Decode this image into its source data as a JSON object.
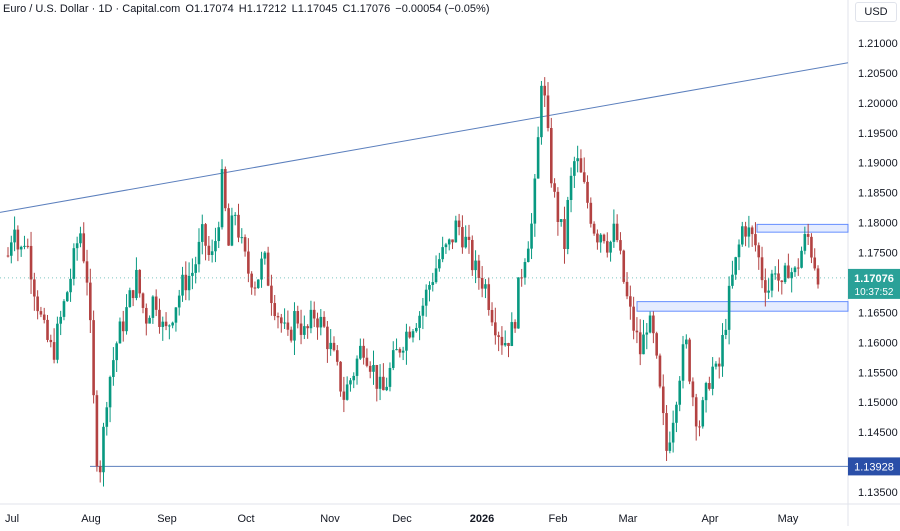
{
  "header": {
    "symbol": "Euro / U.S. Dollar",
    "timeframe": "1D",
    "source": "Capital.com",
    "open_label": "O",
    "open": "1.17074",
    "high_label": "H",
    "high": "1.17212",
    "low_label": "L",
    "low": "1.17045",
    "close_label": "C",
    "close": "1.17076",
    "change": "−0.00054 (−0.05%)",
    "sep": "·",
    "currency": "USD"
  },
  "chart_data": {
    "type": "candlestick",
    "title": "Euro / U.S. Dollar",
    "x_ticks": [
      "Jul",
      "Aug",
      "Sep",
      "Oct",
      "Nov",
      "Dec",
      "2026",
      "Feb",
      "Mar",
      "Apr",
      "May"
    ],
    "y_ticks": [
      "1.21000",
      "1.20500",
      "1.20000",
      "1.19500",
      "1.19000",
      "1.18500",
      "1.18000",
      "1.17500",
      "1.17000",
      "1.16500",
      "1.16000",
      "1.15500",
      "1.15000",
      "1.14500",
      "1.14000",
      "1.13500"
    ],
    "ylim": [
      1.133,
      1.2135
    ],
    "price_label": "1.17076",
    "countdown": "10:37:52",
    "low_label": "1.13928",
    "trendline": {
      "from": 1.1817,
      "to": 1.2067
    },
    "horizontal_line": 1.13928,
    "zones": [
      {
        "low": 1.1652,
        "high": 1.1668
      },
      {
        "low": 1.1784,
        "high": 1.1797
      }
    ],
    "colors": {
      "up": "#26a69a",
      "down": "#ef5350",
      "candle_up_body": "#089981",
      "candle_down_body": "#b34242",
      "line": "#5b7fbd",
      "zone": "#2962ff",
      "last": "#2aa198"
    },
    "path": [
      [
        0,
        1.1745
      ],
      [
        4,
        1.181
      ],
      [
        7,
        1.174
      ],
      [
        11,
        1.178
      ],
      [
        16,
        1.17
      ],
      [
        22,
        1.162
      ],
      [
        28,
        1.158
      ],
      [
        34,
        1.165
      ],
      [
        40,
        1.172
      ],
      [
        45,
        1.179
      ],
      [
        50,
        1.17
      ],
      [
        55,
        1.142
      ],
      [
        58,
        1.1393
      ],
      [
        62,
        1.152
      ],
      [
        68,
        1.16
      ],
      [
        74,
        1.165
      ],
      [
        80,
        1.171
      ],
      [
        86,
        1.164
      ],
      [
        92,
        1.168
      ],
      [
        98,
        1.161
      ],
      [
        104,
        1.166
      ],
      [
        110,
        1.17
      ],
      [
        116,
        1.172
      ],
      [
        122,
        1.178
      ],
      [
        127,
        1.173
      ],
      [
        131,
        1.179
      ],
      [
        134,
        1.187
      ],
      [
        138,
        1.176
      ],
      [
        142,
        1.182
      ],
      [
        146,
        1.176
      ],
      [
        150,
        1.172
      ],
      [
        155,
        1.17
      ],
      [
        160,
        1.174
      ],
      [
        165,
        1.168
      ],
      [
        170,
        1.164
      ],
      [
        175,
        1.16
      ],
      [
        180,
        1.165
      ],
      [
        186,
        1.161
      ],
      [
        192,
        1.165
      ],
      [
        198,
        1.162
      ],
      [
        204,
        1.157
      ],
      [
        210,
        1.151
      ],
      [
        216,
        1.155
      ],
      [
        222,
        1.16
      ],
      [
        228,
        1.156
      ],
      [
        234,
        1.151
      ],
      [
        240,
        1.156
      ],
      [
        246,
        1.16
      ],
      [
        252,
        1.163
      ],
      [
        258,
        1.165
      ],
      [
        264,
        1.17
      ],
      [
        270,
        1.174
      ],
      [
        276,
        1.176
      ],
      [
        281,
        1.18
      ],
      [
        286,
        1.177
      ],
      [
        292,
        1.172
      ],
      [
        298,
        1.17
      ],
      [
        304,
        1.164
      ],
      [
        310,
        1.16
      ],
      [
        316,
        1.162
      ],
      [
        320,
        1.17
      ],
      [
        324,
        1.176
      ],
      [
        328,
        1.18
      ],
      [
        331,
        1.19
      ],
      [
        334,
        1.206
      ],
      [
        337,
        1.196
      ],
      [
        341,
        1.185
      ],
      [
        345,
        1.18
      ],
      [
        348,
        1.176
      ],
      [
        351,
        1.185
      ],
      [
        355,
        1.191
      ],
      [
        360,
        1.186
      ],
      [
        364,
        1.182
      ],
      [
        368,
        1.178
      ],
      [
        372,
        1.179
      ],
      [
        376,
        1.176
      ],
      [
        380,
        1.179
      ],
      [
        384,
        1.172
      ],
      [
        388,
        1.166
      ],
      [
        392,
        1.162
      ],
      [
        396,
        1.158
      ],
      [
        400,
        1.164
      ],
      [
        404,
        1.16
      ],
      [
        408,
        1.151
      ],
      [
        412,
        1.142
      ],
      [
        416,
        1.148
      ],
      [
        420,
        1.155
      ],
      [
        424,
        1.16
      ],
      [
        428,
        1.152
      ],
      [
        432,
        1.146
      ],
      [
        436,
        1.15
      ],
      [
        440,
        1.156
      ],
      [
        444,
        1.154
      ],
      [
        448,
        1.162
      ],
      [
        452,
        1.169
      ],
      [
        456,
        1.174
      ],
      [
        460,
        1.18
      ],
      [
        464,
        1.178
      ],
      [
        468,
        1.176
      ],
      [
        472,
        1.171
      ],
      [
        476,
        1.169
      ],
      [
        480,
        1.173
      ],
      [
        484,
        1.168
      ],
      [
        488,
        1.173
      ],
      [
        492,
        1.171
      ],
      [
        496,
        1.175
      ],
      [
        500,
        1.178
      ],
      [
        504,
        1.174
      ],
      [
        508,
        1.1708
      ]
    ],
    "last_index": 508
  }
}
